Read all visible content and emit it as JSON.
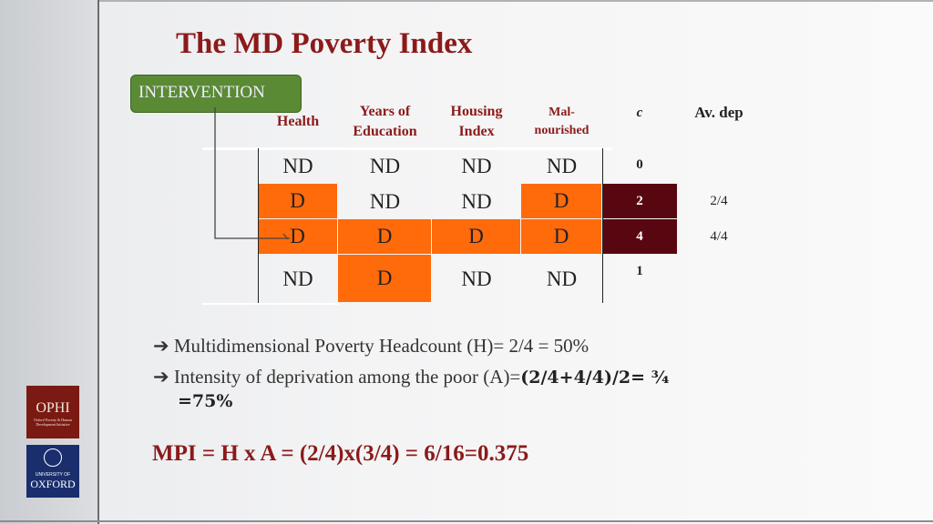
{
  "title": "The MD Poverty Index",
  "intervention_label": "INTERVENTION",
  "headers": [
    "Health",
    "Years of Education",
    "Housing Index",
    "Mal- nourished",
    "c",
    "Av. dep"
  ],
  "rows": [
    {
      "cells": [
        "ND",
        "ND",
        "ND",
        "ND"
      ],
      "c": "0",
      "avdep": ""
    },
    {
      "cells": [
        "D",
        "ND",
        "ND",
        "D"
      ],
      "c": "2",
      "avdep": "2/4"
    },
    {
      "cells": [
        "D",
        "D",
        "D",
        "D"
      ],
      "c": "4",
      "avdep": "4/4"
    },
    {
      "cells": [
        "ND",
        "D",
        "ND",
        "ND"
      ],
      "c": "1",
      "avdep": ""
    }
  ],
  "bullets": {
    "b1": "Multidimensional Poverty Headcount (H)=  2/4 = 50%",
    "b2_normal": "Intensity of deprivation among the poor (A)=",
    "b2_bold": "(2/4+4/4)/2= ¾",
    "b2_cont": "=75%"
  },
  "mpi": "MPI = H x A = (2/4)x(3/4) = 6/16=0.375",
  "logos": {
    "ophi": "OPHI",
    "ophi_sub": "Oxford Poverty & Human Development Initiative",
    "oxford_top": "UNIVERSITY OF",
    "oxford": "OXFORD"
  },
  "colors": {
    "deprived": "#ff6a0a",
    "poor": "#580710",
    "title": "#8b1a1a",
    "intervention": "#5a8a34"
  }
}
